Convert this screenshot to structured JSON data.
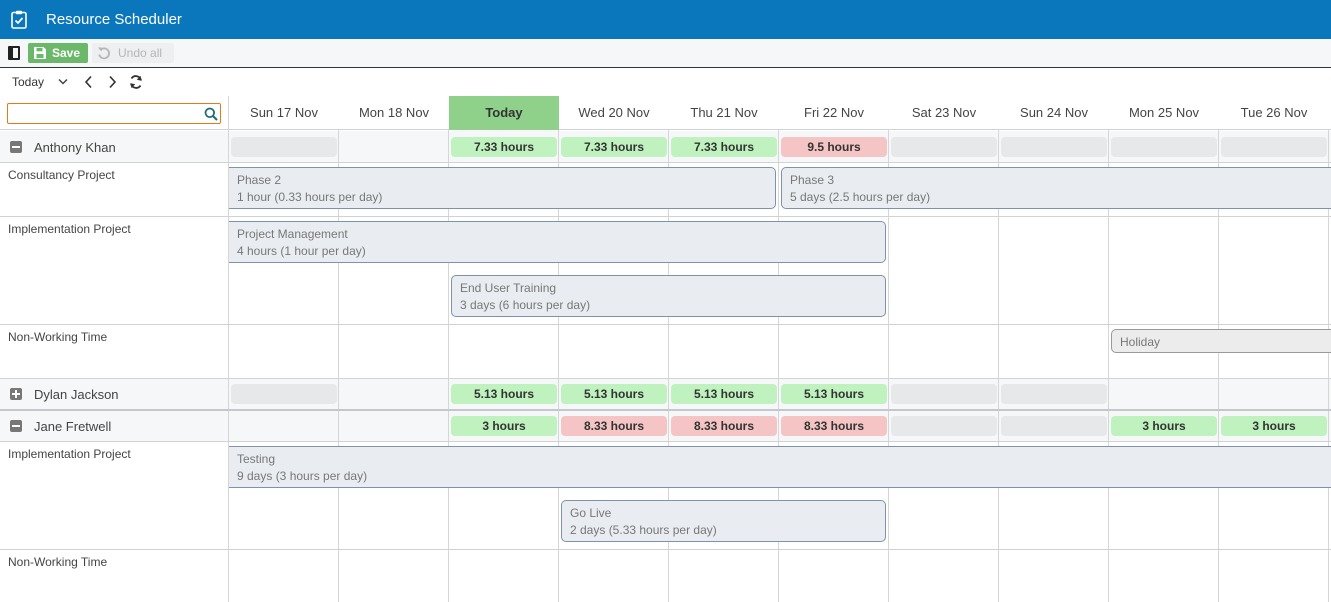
{
  "app": {
    "title": "Resource Scheduler"
  },
  "toolbar": {
    "save_label": "Save",
    "undo_label": "Undo all"
  },
  "nav": {
    "today_label": "Today"
  },
  "search": {
    "value": "",
    "placeholder": ""
  },
  "days": [
    {
      "label": "Sun 17 Nov",
      "today": false
    },
    {
      "label": "Mon 18 Nov",
      "today": false
    },
    {
      "label": "Today",
      "today": true
    },
    {
      "label": "Wed 20 Nov",
      "today": false
    },
    {
      "label": "Thu 21 Nov",
      "today": false
    },
    {
      "label": "Fri 22 Nov",
      "today": false
    },
    {
      "label": "Sat 23 Nov",
      "today": false
    },
    {
      "label": "Sun 24 Nov",
      "today": false
    },
    {
      "label": "Mon 25 Nov",
      "today": false
    },
    {
      "label": "Tue 26 Nov",
      "today": false
    }
  ],
  "resources": [
    {
      "name": "Anthony Khan",
      "expanded": true,
      "totals": [
        {
          "text": "",
          "status": "empty"
        },
        null,
        {
          "text": "7.33 hours",
          "status": "ok"
        },
        {
          "text": "7.33 hours",
          "status": "ok"
        },
        {
          "text": "7.33 hours",
          "status": "ok"
        },
        {
          "text": "9.5 hours",
          "status": "over"
        },
        {
          "text": "",
          "status": "empty"
        },
        {
          "text": "",
          "status": "empty"
        },
        {
          "text": "",
          "status": "empty"
        },
        {
          "text": "",
          "status": "empty"
        }
      ],
      "projects": [
        {
          "name": "Consultancy Project",
          "tasks": [
            {
              "title": "Phase 2",
              "detail": "1 hour (0.33 hours per day)"
            },
            {
              "title": "Phase 3",
              "detail": "5 days (2.5 hours per day)"
            }
          ]
        },
        {
          "name": "Implementation Project",
          "tasks": [
            {
              "title": "Project Management",
              "detail": "4 hours (1 hour per day)"
            },
            {
              "title": "End User Training",
              "detail": "3 days (6 hours per day)"
            }
          ]
        },
        {
          "name": "Non-Working Time",
          "tasks": [
            {
              "title": "Holiday",
              "detail": ""
            }
          ]
        }
      ]
    },
    {
      "name": "Dylan Jackson",
      "expanded": false,
      "totals": [
        {
          "text": "",
          "status": "empty"
        },
        null,
        {
          "text": "5.13 hours",
          "status": "ok"
        },
        {
          "text": "5.13 hours",
          "status": "ok"
        },
        {
          "text": "5.13 hours",
          "status": "ok"
        },
        {
          "text": "5.13 hours",
          "status": "ok"
        },
        {
          "text": "",
          "status": "empty"
        },
        {
          "text": "",
          "status": "empty"
        },
        null,
        null
      ]
    },
    {
      "name": "Jane Fretwell",
      "expanded": true,
      "totals": [
        null,
        null,
        {
          "text": "3 hours",
          "status": "ok"
        },
        {
          "text": "8.33 hours",
          "status": "over"
        },
        {
          "text": "8.33 hours",
          "status": "over"
        },
        {
          "text": "8.33 hours",
          "status": "over"
        },
        {
          "text": "",
          "status": "empty"
        },
        {
          "text": "",
          "status": "empty"
        },
        {
          "text": "3 hours",
          "status": "ok"
        },
        {
          "text": "3 hours",
          "status": "ok"
        }
      ],
      "projects": [
        {
          "name": "Implementation Project",
          "tasks": [
            {
              "title": "Testing",
              "detail": "9 days (3 hours per day)"
            },
            {
              "title": "Go Live",
              "detail": "2 days (5.33 hours per day)"
            }
          ]
        },
        {
          "name": "Non-Working Time",
          "tasks": []
        }
      ]
    }
  ]
}
